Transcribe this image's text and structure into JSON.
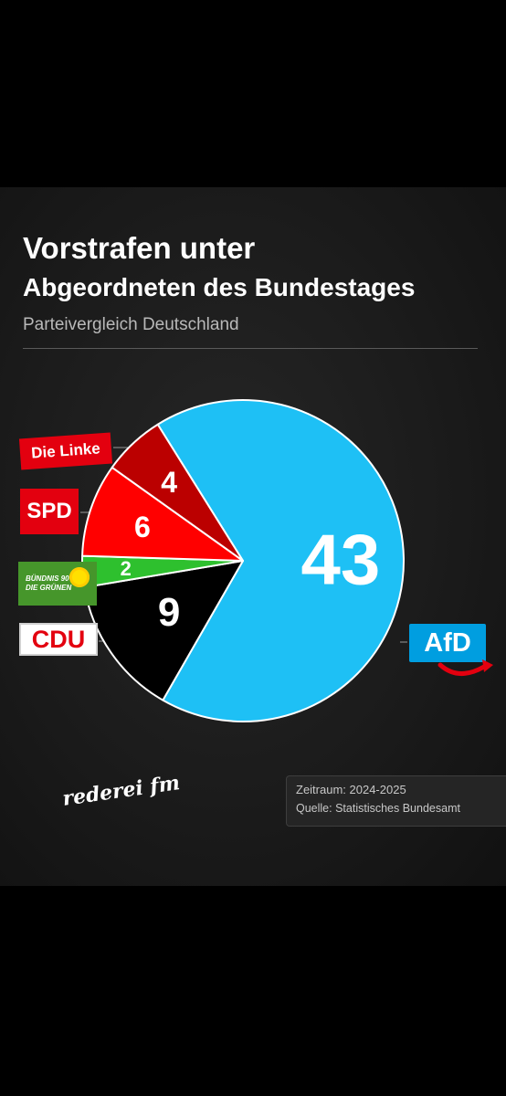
{
  "title_line1": "Vorstrafen unter",
  "title_line2": "Abgeordneten des Bundestages",
  "subtitle": "Parteivergleich Deutschland",
  "chart_data": {
    "type": "pie",
    "title": "Vorstrafen unter Abgeordneten des Bundestages",
    "subtitle": "Parteivergleich Deutschland",
    "categories": [
      "AfD",
      "CDU",
      "Bündnis 90 Die Grünen",
      "SPD",
      "Die Linke"
    ],
    "values": [
      43,
      9,
      2,
      6,
      4
    ],
    "colors": [
      "#1ec0f5",
      "#000000",
      "#2ec02e",
      "#ff0000",
      "#bb0000"
    ],
    "label_colors": [
      "#ffffff",
      "#ffffff",
      "#ffffff",
      "#ffffff",
      "#ffffff"
    ]
  },
  "logos": {
    "linke": "Die Linke",
    "spd": "SPD",
    "gruene_line1": "BÜNDNIS 90",
    "gruene_line2": "DIE GRÜNEN",
    "cdu": "CDU",
    "afd": "AfD"
  },
  "brand": "rederei fm",
  "period": "Zeitraum: 2024-2025",
  "source": "Quelle: Statistisches Bundesamt"
}
